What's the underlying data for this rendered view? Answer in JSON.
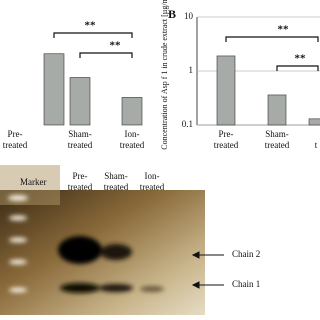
{
  "chart_data": [
    {
      "type": "bar",
      "categories": [
        "Pre-treated",
        "Sham-treated",
        "Ion-treated"
      ],
      "values": [
        0.75,
        0.5,
        0.29
      ],
      "color": "#a7aba8",
      "ylim": [
        0,
        1
      ],
      "annotations": [
        "**",
        "**"
      ]
    },
    {
      "type": "bar",
      "panel": "B",
      "y_label": "Concentration of Asp f 1 in crude extract [µg/ml]",
      "categories": [
        "Pre-treated",
        "Sham-treated",
        "t"
      ],
      "values": [
        1.9,
        0.36,
        0.13
      ],
      "color": "#a7aba8",
      "log_scale": true,
      "ylim": [
        0.1,
        10
      ],
      "yticks": [
        0.1,
        1,
        10
      ],
      "grid": true,
      "annotations": [
        "**",
        "**"
      ]
    }
  ],
  "gel": {
    "lanes": [
      "Marker",
      "Pre-treated",
      "Sham-treated",
      "Ion-treated"
    ],
    "bands": [
      "Chain 2",
      "Chain 1"
    ]
  }
}
